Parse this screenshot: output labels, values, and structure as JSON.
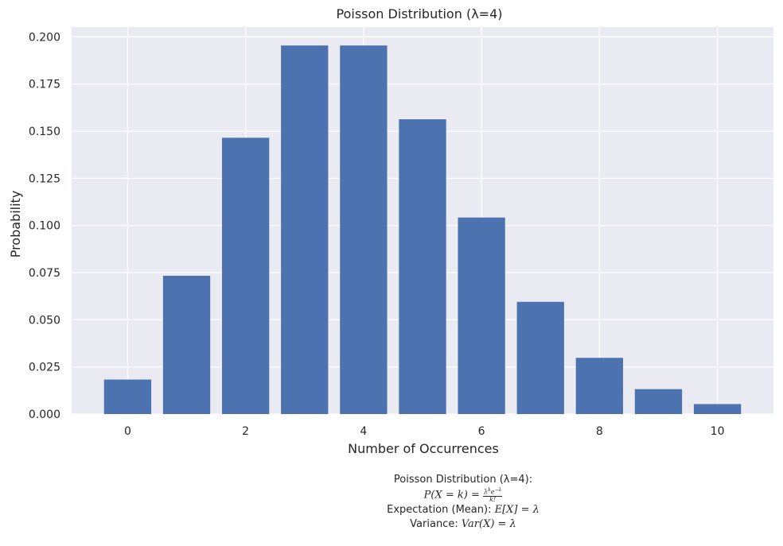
{
  "chart_data": {
    "type": "bar",
    "title": "Poisson Distribution (λ=4)",
    "xlabel": "Number of Occurrences",
    "ylabel": "Probability",
    "categories": [
      0,
      1,
      2,
      3,
      4,
      5,
      6,
      7,
      8,
      9,
      10
    ],
    "values": [
      0.0183,
      0.0733,
      0.1465,
      0.1954,
      0.1954,
      0.1563,
      0.1042,
      0.0595,
      0.0298,
      0.0132,
      0.0053
    ],
    "xticks": [
      "0",
      "2",
      "4",
      "6",
      "8",
      "10"
    ],
    "yticks": [
      "0.000",
      "0.025",
      "0.050",
      "0.075",
      "0.100",
      "0.125",
      "0.150",
      "0.175",
      "0.200"
    ],
    "xlim": [
      -0.95,
      10.95
    ],
    "ylim": [
      0,
      0.2052
    ],
    "grid": true,
    "colors": {
      "bar": "#4c72b0",
      "plot_bg": "#eaeaf2",
      "grid": "#ffffff"
    }
  },
  "caption": {
    "line1": "Poisson Distribution (λ=4):",
    "line2": {
      "lhs": "P(X = k) = ",
      "num": "λ",
      "num_sup": "k",
      "num_rest": "e",
      "num_sup2": "−λ",
      "den": "k!"
    },
    "line3": {
      "label": "Expectation (Mean): ",
      "formula": "E[X] = λ"
    },
    "line4": {
      "label": "Variance: ",
      "formula": "Var(X) = λ"
    }
  }
}
